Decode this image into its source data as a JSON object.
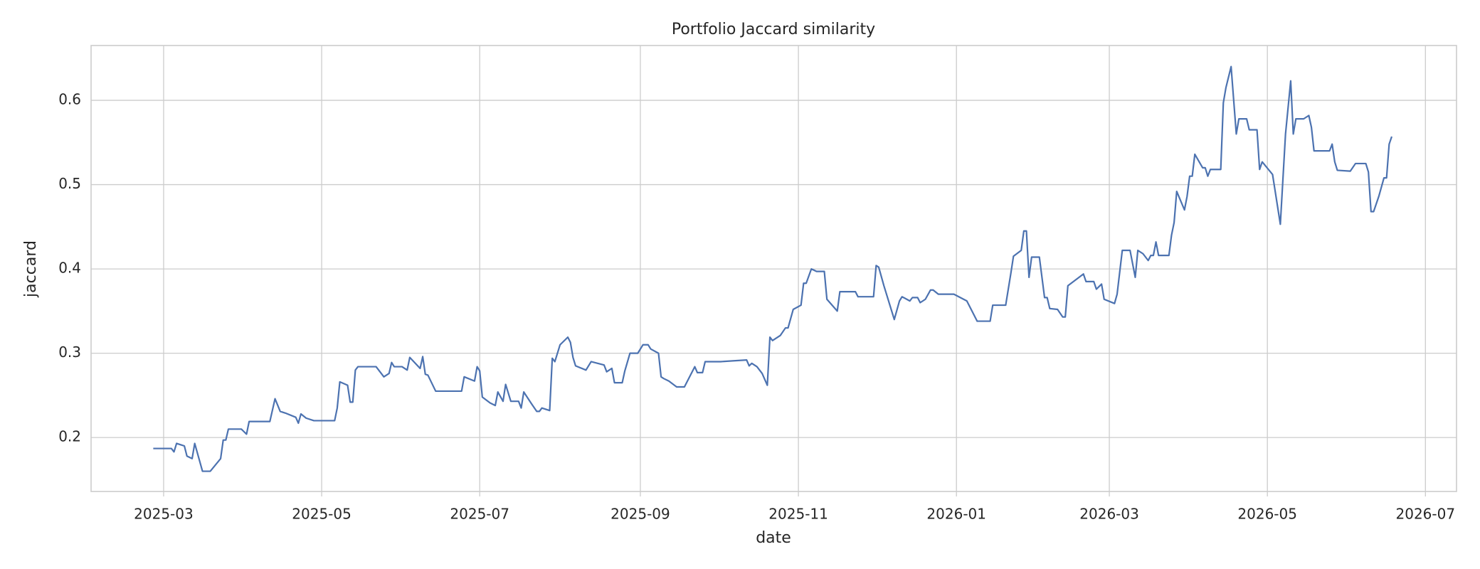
{
  "chart_data": {
    "type": "line",
    "title": "Portfolio Jaccard similarity",
    "xlabel": "date",
    "ylabel": "jaccard",
    "x": [
      "2025-02-25",
      "2025-03-04",
      "2025-03-05",
      "2025-03-06",
      "2025-03-09",
      "2025-03-10",
      "2025-03-12",
      "2025-03-13",
      "2025-03-16",
      "2025-03-19",
      "2025-03-23",
      "2025-03-24",
      "2025-03-25",
      "2025-03-26",
      "2025-03-31",
      "2025-04-01",
      "2025-04-02",
      "2025-04-03",
      "2025-04-11",
      "2025-04-13",
      "2025-04-15",
      "2025-04-17",
      "2025-04-21",
      "2025-04-22",
      "2025-04-23",
      "2025-04-25",
      "2025-04-28",
      "2025-05-06",
      "2025-05-07",
      "2025-05-08",
      "2025-05-11",
      "2025-05-12",
      "2025-05-13",
      "2025-05-14",
      "2025-05-15",
      "2025-05-22",
      "2025-05-25",
      "2025-05-27",
      "2025-05-28",
      "2025-05-29",
      "2025-06-01",
      "2025-06-03",
      "2025-06-04",
      "2025-06-08",
      "2025-06-09",
      "2025-06-10",
      "2025-06-11",
      "2025-06-14",
      "2025-06-24",
      "2025-06-25",
      "2025-06-29",
      "2025-06-30",
      "2025-07-01",
      "2025-07-02",
      "2025-07-05",
      "2025-07-07",
      "2025-07-08",
      "2025-07-10",
      "2025-07-11",
      "2025-07-13",
      "2025-07-16",
      "2025-07-17",
      "2025-07-18",
      "2025-07-21",
      "2025-07-23",
      "2025-07-24",
      "2025-07-25",
      "2025-07-28",
      "2025-07-29",
      "2025-07-30",
      "2025-08-01",
      "2025-08-04",
      "2025-08-05",
      "2025-08-06",
      "2025-08-07",
      "2025-08-11",
      "2025-08-13",
      "2025-08-18",
      "2025-08-19",
      "2025-08-21",
      "2025-08-22",
      "2025-08-25",
      "2025-08-26",
      "2025-08-28",
      "2025-08-31",
      "2025-09-02",
      "2025-09-04",
      "2025-09-05",
      "2025-09-08",
      "2025-09-09",
      "2025-09-10",
      "2025-09-12",
      "2025-09-15",
      "2025-09-18",
      "2025-09-22",
      "2025-09-23",
      "2025-09-25",
      "2025-09-26",
      "2025-10-02",
      "2025-10-12",
      "2025-10-13",
      "2025-10-14",
      "2025-10-16",
      "2025-10-18",
      "2025-10-20",
      "2025-10-21",
      "2025-10-22",
      "2025-10-25",
      "2025-10-27",
      "2025-10-28",
      "2025-10-30",
      "2025-11-02",
      "2025-11-03",
      "2025-11-04",
      "2025-11-06",
      "2025-11-08",
      "2025-11-11",
      "2025-11-12",
      "2025-11-16",
      "2025-11-17",
      "2025-11-23",
      "2025-11-24",
      "2025-11-30",
      "2025-12-01",
      "2025-12-02",
      "2025-12-04",
      "2025-12-07",
      "2025-12-08",
      "2025-12-10",
      "2025-12-11",
      "2025-12-14",
      "2025-12-15",
      "2025-12-17",
      "2025-12-18",
      "2025-12-20",
      "2025-12-22",
      "2025-12-23",
      "2025-12-25",
      "2025-12-31",
      "2026-01-05",
      "2026-01-07",
      "2026-01-09",
      "2026-01-14",
      "2026-01-15",
      "2026-01-20",
      "2026-01-22",
      "2026-01-23",
      "2026-01-26",
      "2026-01-27",
      "2026-01-28",
      "2026-01-29",
      "2026-01-30",
      "2026-02-02",
      "2026-02-04",
      "2026-02-05",
      "2026-02-06",
      "2026-02-09",
      "2026-02-11",
      "2026-02-12",
      "2026-02-13",
      "2026-02-19",
      "2026-02-20",
      "2026-02-23",
      "2026-02-24",
      "2026-02-26",
      "2026-02-27",
      "2026-03-03",
      "2026-03-04",
      "2026-03-06",
      "2026-03-09",
      "2026-03-11",
      "2026-03-12",
      "2026-03-14",
      "2026-03-16",
      "2026-03-17",
      "2026-03-18",
      "2026-03-19",
      "2026-03-20",
      "2026-03-24",
      "2026-03-25",
      "2026-03-26",
      "2026-03-27",
      "2026-03-30",
      "2026-03-31",
      "2026-04-01",
      "2026-04-02",
      "2026-04-03",
      "2026-04-06",
      "2026-04-07",
      "2026-04-08",
      "2026-04-09",
      "2026-04-13",
      "2026-04-14",
      "2026-04-15",
      "2026-04-17",
      "2026-04-19",
      "2026-04-20",
      "2026-04-23",
      "2026-04-24",
      "2026-04-27",
      "2026-04-28",
      "2026-04-29",
      "2026-05-03",
      "2026-05-06",
      "2026-05-08",
      "2026-05-10",
      "2026-05-11",
      "2026-05-12",
      "2026-05-15",
      "2026-05-17",
      "2026-05-18",
      "2026-05-19",
      "2026-05-25",
      "2026-05-26",
      "2026-05-27",
      "2026-05-28",
      "2026-06-02",
      "2026-06-04",
      "2026-06-08",
      "2026-06-09",
      "2026-06-10",
      "2026-06-11",
      "2026-06-13",
      "2026-06-15",
      "2026-06-16",
      "2026-06-17",
      "2026-06-18"
    ],
    "series": [
      {
        "name": "jaccard",
        "color": "#4c72b0",
        "values": [
          0.187,
          0.187,
          0.183,
          0.193,
          0.19,
          0.178,
          0.175,
          0.193,
          0.16,
          0.16,
          0.175,
          0.197,
          0.197,
          0.21,
          0.21,
          0.207,
          0.204,
          0.219,
          0.219,
          0.246,
          0.231,
          0.229,
          0.224,
          0.217,
          0.228,
          0.223,
          0.22,
          0.22,
          0.235,
          0.266,
          0.262,
          0.242,
          0.242,
          0.28,
          0.284,
          0.284,
          0.272,
          0.276,
          0.289,
          0.284,
          0.284,
          0.28,
          0.295,
          0.282,
          0.296,
          0.275,
          0.274,
          0.255,
          0.255,
          0.272,
          0.267,
          0.284,
          0.279,
          0.248,
          0.241,
          0.238,
          0.254,
          0.243,
          0.263,
          0.243,
          0.243,
          0.235,
          0.254,
          0.24,
          0.231,
          0.231,
          0.235,
          0.232,
          0.294,
          0.29,
          0.31,
          0.319,
          0.313,
          0.295,
          0.285,
          0.28,
          0.29,
          0.286,
          0.278,
          0.282,
          0.265,
          0.265,
          0.279,
          0.3,
          0.3,
          0.31,
          0.31,
          0.305,
          0.3,
          0.272,
          0.27,
          0.267,
          0.26,
          0.26,
          0.284,
          0.277,
          0.277,
          0.29,
          0.29,
          0.292,
          0.285,
          0.288,
          0.284,
          0.276,
          0.262,
          0.319,
          0.315,
          0.321,
          0.33,
          0.33,
          0.352,
          0.357,
          0.383,
          0.383,
          0.4,
          0.397,
          0.397,
          0.364,
          0.35,
          0.373,
          0.373,
          0.367,
          0.367,
          0.404,
          0.402,
          0.38,
          0.35,
          0.34,
          0.362,
          0.367,
          0.362,
          0.366,
          0.366,
          0.36,
          0.364,
          0.375,
          0.375,
          0.37,
          0.37,
          0.362,
          0.35,
          0.338,
          0.338,
          0.357,
          0.357,
          0.395,
          0.415,
          0.422,
          0.445,
          0.445,
          0.39,
          0.414,
          0.414,
          0.366,
          0.366,
          0.353,
          0.352,
          0.343,
          0.343,
          0.38,
          0.394,
          0.385,
          0.385,
          0.376,
          0.382,
          0.364,
          0.359,
          0.37,
          0.422,
          0.422,
          0.39,
          0.422,
          0.418,
          0.41,
          0.416,
          0.416,
          0.432,
          0.416,
          0.416,
          0.44,
          0.455,
          0.492,
          0.47,
          0.486,
          0.51,
          0.51,
          0.536,
          0.52,
          0.52,
          0.51,
          0.518,
          0.518,
          0.597,
          0.615,
          0.64,
          0.56,
          0.578,
          0.578,
          0.565,
          0.565,
          0.518,
          0.527,
          0.512,
          0.453,
          0.56,
          0.623,
          0.56,
          0.578,
          0.578,
          0.582,
          0.568,
          0.54,
          0.54,
          0.548,
          0.527,
          0.517,
          0.516,
          0.525,
          0.525,
          0.515,
          0.468,
          0.468,
          0.486,
          0.508,
          0.508,
          0.548,
          0.557
        ]
      }
    ],
    "xlim": [
      "2025-02-01",
      "2026-07-13"
    ],
    "xticks": [
      {
        "value": "2025-03-01",
        "label": "2025-03"
      },
      {
        "value": "2025-05-01",
        "label": "2025-05"
      },
      {
        "value": "2025-07-01",
        "label": "2025-07"
      },
      {
        "value": "2025-09-01",
        "label": "2025-09"
      },
      {
        "value": "2025-11-01",
        "label": "2025-11"
      },
      {
        "value": "2026-01-01",
        "label": "2026-01"
      },
      {
        "value": "2026-03-01",
        "label": "2026-03"
      },
      {
        "value": "2026-05-01",
        "label": "2026-05"
      },
      {
        "value": "2026-07-01",
        "label": "2026-07"
      }
    ],
    "ylim": [
      0.136,
      0.665
    ],
    "yticks": [
      0.2,
      0.3,
      0.4,
      0.5,
      0.6
    ],
    "grid": true
  }
}
